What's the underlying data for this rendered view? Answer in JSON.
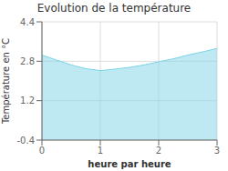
{
  "chart_data": {
    "type": "area",
    "title": "Evolution de la température",
    "xlabel": "heure par heure",
    "ylabel": "Température en °C",
    "x": [
      0,
      0.25,
      0.5,
      0.75,
      1.0,
      1.25,
      1.5,
      1.75,
      2.0,
      2.25,
      2.5,
      2.75,
      3.0
    ],
    "values": [
      3.05,
      2.85,
      2.65,
      2.5,
      2.42,
      2.48,
      2.55,
      2.65,
      2.78,
      2.9,
      3.05,
      3.18,
      3.32
    ],
    "color": "#7dd4e8",
    "xlim": [
      0,
      3
    ],
    "ylim": [
      -0.4,
      4.4
    ],
    "xticks": [
      0,
      1,
      2,
      3
    ],
    "yticks": [
      -0.4,
      1.2,
      2.8,
      4.4
    ],
    "grid": true
  }
}
